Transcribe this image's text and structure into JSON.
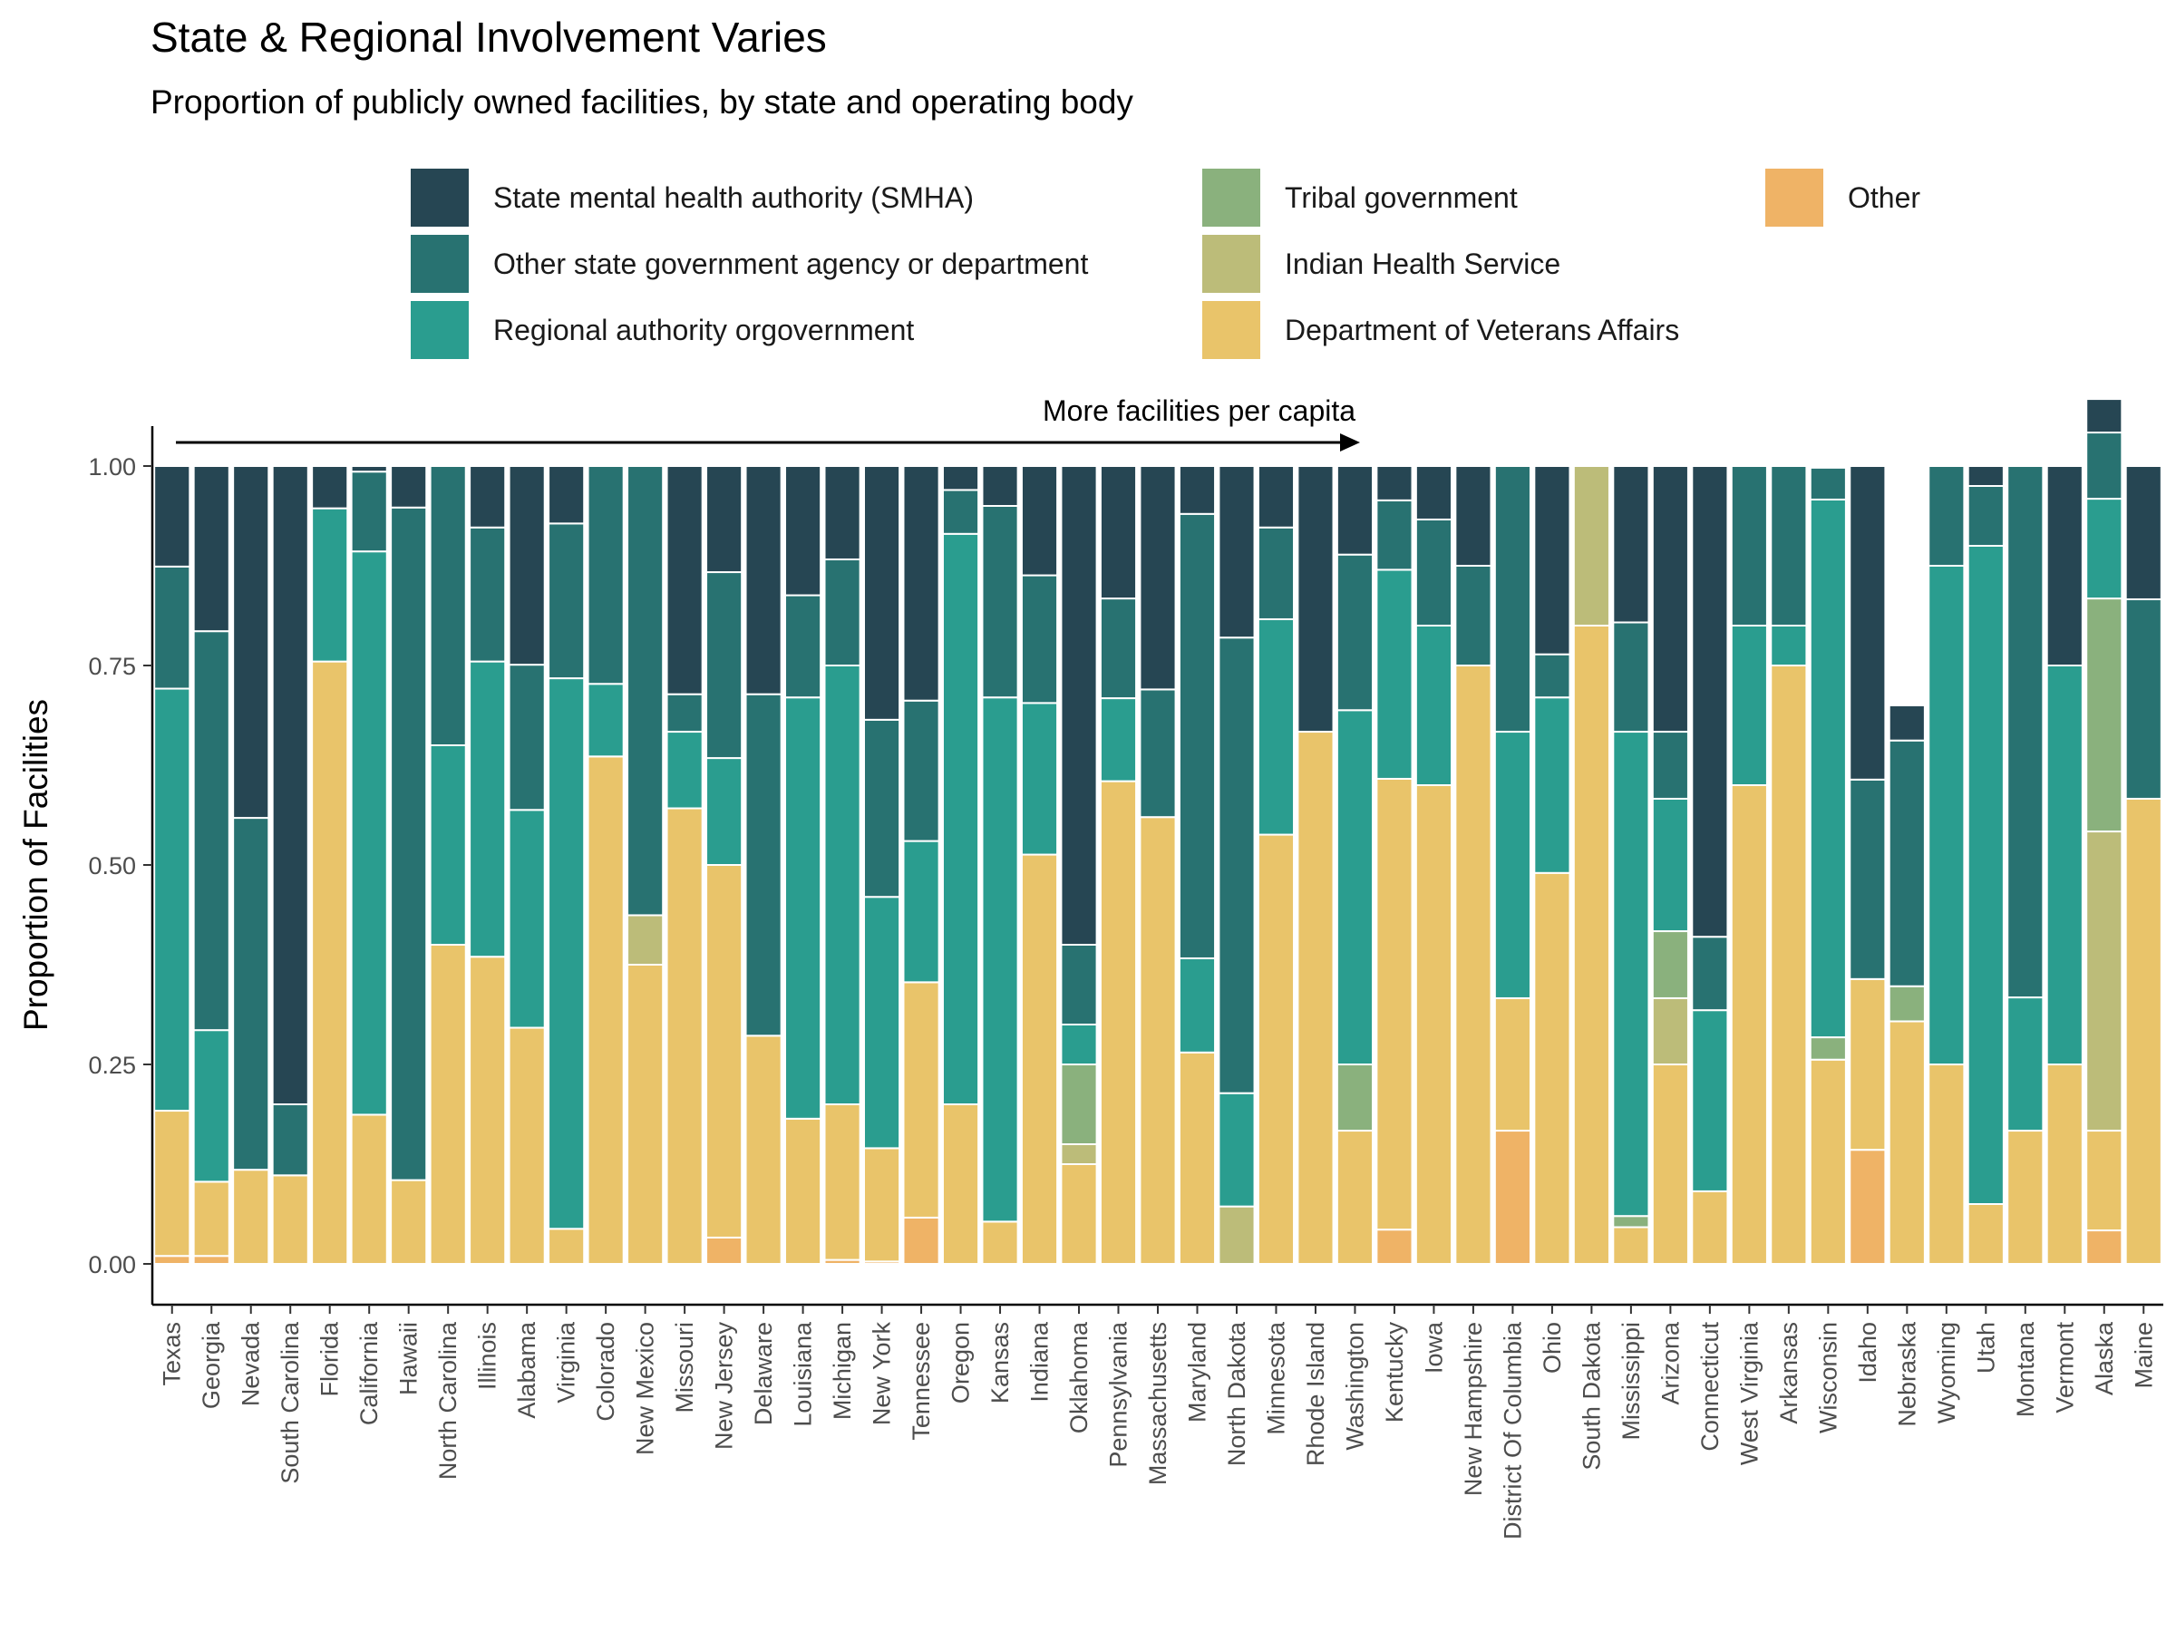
{
  "chart_data": {
    "type": "bar",
    "stacked": true,
    "title": "State & Regional Involvement Varies",
    "subtitle": "Proportion of publicly owned facilities, by state and operating body",
    "xlabel": "",
    "ylabel": "Proportion of Facilities",
    "ylim": [
      0,
      1
    ],
    "yticks": [
      "0.00",
      "0.25",
      "0.50",
      "0.75",
      "1.00"
    ],
    "grid": false,
    "legend_position": "top",
    "annotation": "More facilities per capita",
    "categories": [
      "Texas",
      "Georgia",
      "Nevada",
      "South Carolina",
      "Florida",
      "California",
      "Hawaii",
      "North Carolina",
      "Illinois",
      "Alabama",
      "Virginia",
      "Colorado",
      "New Mexico",
      "Missouri",
      "New Jersey",
      "Delaware",
      "Louisiana",
      "Michigan",
      "New York",
      "Tennessee",
      "Oregon",
      "Kansas",
      "Indiana",
      "Oklahoma",
      "Pennsylvania",
      "Massachusetts",
      "Maryland",
      "North Dakota",
      "Minnesota",
      "Rhode Island",
      "Washington",
      "Kentucky",
      "Iowa",
      "New Hampshire",
      "District Of Columbia",
      "Ohio",
      "South Dakota",
      "Mississippi",
      "Arizona",
      "Connecticut",
      "West Virginia",
      "Arkansas",
      "Wisconsin",
      "Idaho",
      "Nebraska",
      "Wyoming",
      "Utah",
      "Montana",
      "Vermont",
      "Alaska",
      "Maine"
    ],
    "series": [
      {
        "name": "Other",
        "color": "#efb366",
        "values": [
          0.01,
          0.01,
          0,
          0,
          0,
          0,
          0,
          0,
          0,
          0,
          0,
          0,
          0,
          0,
          0.033,
          0,
          0,
          0.005,
          0.003,
          0.058,
          0,
          0,
          0,
          0,
          0,
          0,
          0,
          0,
          0,
          0,
          0,
          0.043,
          0,
          0,
          0.167,
          0,
          0,
          0,
          0,
          0,
          0,
          0,
          0,
          0.143,
          0,
          0,
          0,
          0,
          0,
          0.042,
          0
        ]
      },
      {
        "name": "Department of Veterans Affairs",
        "color": "#e9c46a",
        "values": [
          0.182,
          0.093,
          0.118,
          0.111,
          0.755,
          0.187,
          0.105,
          0.4,
          0.385,
          0.296,
          0.044,
          0.636,
          0.375,
          0.571,
          0.467,
          0.286,
          0.182,
          0.195,
          0.142,
          0.295,
          0.2,
          0.053,
          0.513,
          0.125,
          0.605,
          0.56,
          0.265,
          0,
          0.538,
          0.667,
          0.167,
          0.565,
          0.6,
          0.75,
          0.166,
          0.49,
          0.8,
          0.046,
          0.25,
          0.091,
          0.6,
          0.75,
          0.256,
          0.214,
          0.304,
          0.25,
          0.075,
          0.167,
          0.25,
          0.125,
          0.583
        ]
      },
      {
        "name": "Indian Health Service",
        "color": "#bcbc79",
        "values": [
          0,
          0,
          0,
          0,
          0,
          0,
          0,
          0,
          0,
          0,
          0,
          0,
          0.062,
          0,
          0,
          0,
          0,
          0,
          0,
          0,
          0,
          0,
          0,
          0.025,
          0,
          0,
          0,
          0.072,
          0,
          0,
          0,
          0,
          0,
          0,
          0,
          0,
          0.2,
          0,
          0.083,
          0,
          0,
          0,
          0,
          0,
          0,
          0,
          0,
          0,
          0,
          0.375,
          0
        ]
      },
      {
        "name": "Tribal government",
        "color": "#8ab17d",
        "values": [
          0,
          0,
          0,
          0,
          0,
          0,
          0,
          0,
          0,
          0,
          0,
          0,
          0,
          0,
          0,
          0,
          0,
          0,
          0,
          0,
          0,
          0,
          0,
          0.1,
          0,
          0,
          0,
          0,
          0,
          0,
          0.083,
          0,
          0,
          0,
          0,
          0,
          0,
          0.014,
          0.084,
          0,
          0,
          0,
          0.028,
          0,
          0.044,
          0,
          0,
          0,
          0,
          0.292,
          0
        ]
      },
      {
        "name": "Regional authority orgovernment",
        "color": "#2a9d8f",
        "values": [
          0.529,
          0.19,
          0,
          0,
          0.192,
          0.706,
          0,
          0.25,
          0.37,
          0.273,
          0.69,
          0.091,
          0,
          0.096,
          0.134,
          0,
          0.528,
          0.55,
          0.315,
          0.177,
          0.715,
          0.657,
          0.19,
          0.05,
          0.104,
          0,
          0.118,
          0.142,
          0.27,
          0,
          0.444,
          0.262,
          0.2,
          0,
          0.334,
          0.22,
          0,
          0.607,
          0.166,
          0.227,
          0.2,
          0.05,
          0.674,
          0,
          0,
          0.625,
          0.825,
          0.167,
          0.5,
          0.125,
          0
        ]
      },
      {
        "name": "Other state government agency or department",
        "color": "#287271",
        "values": [
          0.153,
          0.5,
          0.441,
          0.089,
          0,
          0.1,
          0.843,
          0.35,
          0.168,
          0.182,
          0.194,
          0.273,
          0.563,
          0.047,
          0.233,
          0.428,
          0.128,
          0.133,
          0.222,
          0.176,
          0.055,
          0.24,
          0.16,
          0.1,
          0.125,
          0.16,
          0.557,
          0.571,
          0.115,
          0,
          0.195,
          0.087,
          0.133,
          0.125,
          0.333,
          0.054,
          0,
          0.137,
          0.084,
          0.092,
          0.2,
          0.2,
          0.04,
          0.25,
          0.308,
          0.125,
          0.075,
          0.666,
          0,
          0.083,
          0.25
        ]
      },
      {
        "name": "State mental health authority (SMHA)",
        "color": "#264653",
        "values": [
          0.126,
          0.207,
          0.441,
          0.8,
          0.053,
          0.007,
          0.052,
          0,
          0.077,
          0.249,
          0.072,
          0,
          0,
          0.286,
          0.133,
          0.286,
          0.162,
          0.117,
          0.318,
          0.294,
          0.03,
          0.05,
          0.137,
          0.6,
          0.166,
          0.28,
          0.06,
          0.215,
          0.077,
          0.333,
          0.111,
          0.043,
          0.067,
          0.125,
          0,
          0.236,
          0,
          0.196,
          0.333,
          0.59,
          0,
          0,
          0.002,
          0.393,
          0.044,
          0,
          0.025,
          0,
          0.25,
          0.042,
          0.167
        ]
      }
    ]
  },
  "legend_order": [
    "State mental health authority (SMHA)",
    "Other state government agency or department",
    "Regional authority orgovernment",
    "Tribal government",
    "Indian Health Service",
    "Department of Veterans Affairs",
    "Other"
  ]
}
